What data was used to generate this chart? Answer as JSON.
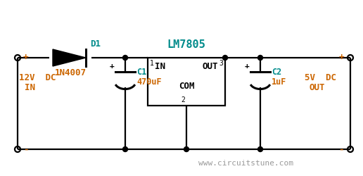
{
  "bg_color": "#ffffff",
  "wire_color": "#000000",
  "text_color_cyan": "#008B8B",
  "text_color_orange": "#CC6600",
  "text_color_gray": "#999999",
  "watermark": "www.circuitstune.com",
  "title_text": "LM7805",
  "ic_pin1_label": "1",
  "ic_pin2_label": "2",
  "ic_pin3_label": "3",
  "ic_in_label": "IN",
  "ic_out_label": "OUT",
  "ic_com_label": "COM",
  "d1_label": "D1",
  "d1_part": "1N4007",
  "c1_label": "C1",
  "c1_value": "470uF",
  "c2_label": "C2",
  "c2_value": "1uF",
  "plus_sign": "+",
  "minus_sign": "-",
  "in_line1": "12V  DC",
  "in_line2": "IN",
  "out_line1": "5V  DC",
  "out_line2": "OUT"
}
